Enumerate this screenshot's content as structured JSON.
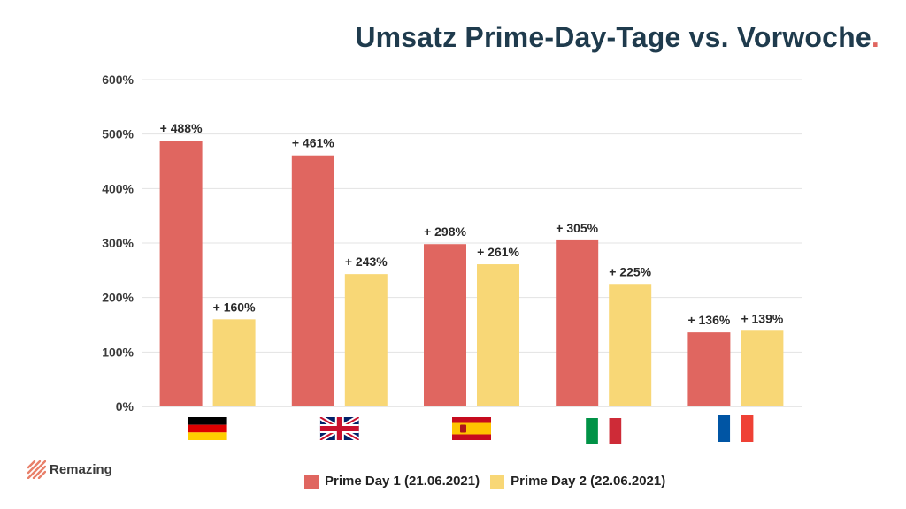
{
  "title": "Umsatz Prime-Day-Tage vs. Vorwoche",
  "title_dot": ".",
  "brand": "Remazing",
  "colors": {
    "series1": "#e06660",
    "series2": "#f8d776",
    "title": "#1f3b4d",
    "grid": "#e3e3e3"
  },
  "chart_data": {
    "type": "bar",
    "title": "Umsatz Prime-Day-Tage vs. Vorwoche",
    "categories": [
      "Deutschland",
      "Vereinigtes Königreich",
      "Spanien",
      "Italien",
      "Frankreich"
    ],
    "category_icons": [
      "flag-germany",
      "flag-uk",
      "flag-spain",
      "flag-italy",
      "flag-france"
    ],
    "series": [
      {
        "name": "Prime Day 1 (21.06.2021)",
        "values": [
          488,
          461,
          298,
          305,
          136
        ],
        "labels": [
          "+ 488%",
          "+ 461%",
          "+ 298%",
          "+ 305%",
          "+ 136%"
        ]
      },
      {
        "name": "Prime Day 2 (22.06.2021)",
        "values": [
          160,
          243,
          261,
          225,
          139
        ],
        "labels": [
          "+ 160%",
          "+ 243%",
          "+ 261%",
          "+ 225%",
          "+ 139%"
        ]
      }
    ],
    "yticks": [
      "0%",
      "100%",
      "200%",
      "300%",
      "400%",
      "500%",
      "600%"
    ],
    "ylim": [
      0,
      600
    ],
    "xlabel": "",
    "ylabel": "",
    "grid": true,
    "legend": "bottom-center"
  }
}
